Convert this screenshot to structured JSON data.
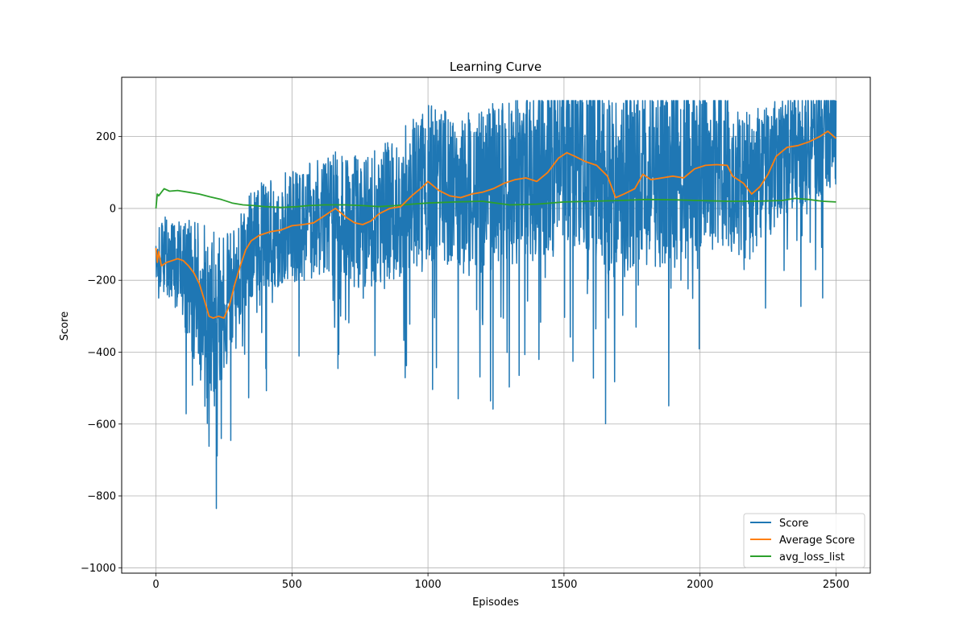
{
  "chart_data": {
    "type": "line",
    "title": "Learning Curve",
    "xlabel": "Episodes",
    "ylabel": "Score",
    "xlim": [
      -126,
      2626
    ],
    "ylim": [
      -1015,
      365
    ],
    "x_ticks": [
      0,
      500,
      1000,
      1500,
      2000,
      2500
    ],
    "y_ticks": [
      -1000,
      -800,
      -600,
      -400,
      -200,
      0,
      200
    ],
    "x_tick_labels": [
      "0",
      "500",
      "1000",
      "1500",
      "2000",
      "2500"
    ],
    "y_tick_labels": [
      "−1000",
      "−800",
      "−600",
      "−400",
      "−200",
      "0",
      "200"
    ],
    "grid": true,
    "legend_position": "lower-right",
    "series": [
      {
        "name": "Score",
        "color": "#1f77b4",
        "episodes": 2500,
        "noise": "high-variance per-episode score",
        "trend": [
          [
            0,
            -150
          ],
          [
            40,
            -130
          ],
          [
            80,
            -160
          ],
          [
            120,
            -200
          ],
          [
            160,
            -260
          ],
          [
            200,
            -310
          ],
          [
            240,
            -300
          ],
          [
            280,
            -230
          ],
          [
            320,
            -150
          ],
          [
            360,
            -90
          ],
          [
            400,
            -70
          ],
          [
            460,
            -55
          ],
          [
            520,
            -45
          ],
          [
            580,
            -35
          ],
          [
            640,
            -10
          ],
          [
            700,
            -30
          ],
          [
            760,
            -40
          ],
          [
            820,
            -20
          ],
          [
            880,
            5
          ],
          [
            940,
            40
          ],
          [
            1000,
            75
          ],
          [
            1060,
            55
          ],
          [
            1120,
            35
          ],
          [
            1180,
            45
          ],
          [
            1240,
            60
          ],
          [
            1300,
            75
          ],
          [
            1360,
            85
          ],
          [
            1420,
            105
          ],
          [
            1480,
            145
          ],
          [
            1520,
            150
          ],
          [
            1580,
            125
          ],
          [
            1640,
            105
          ],
          [
            1680,
            40
          ],
          [
            1720,
            55
          ],
          [
            1780,
            90
          ],
          [
            1820,
            80
          ],
          [
            1880,
            90
          ],
          [
            1940,
            95
          ],
          [
            2000,
            120
          ],
          [
            2060,
            120
          ],
          [
            2120,
            100
          ],
          [
            2180,
            60
          ],
          [
            2240,
            95
          ],
          [
            2300,
            160
          ],
          [
            2360,
            175
          ],
          [
            2420,
            200
          ],
          [
            2460,
            210
          ],
          [
            2500,
            195
          ]
        ],
        "noise_profile": [
          [
            0,
            90
          ],
          [
            100,
            150
          ],
          [
            200,
            260
          ],
          [
            300,
            150
          ],
          [
            500,
            160
          ],
          [
            800,
            190
          ],
          [
            1000,
            220
          ],
          [
            1200,
            230
          ],
          [
            1500,
            250
          ],
          [
            1800,
            260
          ],
          [
            2100,
            230
          ],
          [
            2300,
            180
          ],
          [
            2500,
            170
          ]
        ]
      },
      {
        "name": "Average Score",
        "color": "#ff7f0e",
        "points": [
          [
            0,
            -110
          ],
          [
            5,
            -150
          ],
          [
            10,
            -120
          ],
          [
            20,
            -160
          ],
          [
            40,
            -150
          ],
          [
            60,
            -145
          ],
          [
            80,
            -140
          ],
          [
            100,
            -145
          ],
          [
            120,
            -160
          ],
          [
            140,
            -180
          ],
          [
            160,
            -210
          ],
          [
            180,
            -260
          ],
          [
            195,
            -300
          ],
          [
            210,
            -305
          ],
          [
            230,
            -300
          ],
          [
            250,
            -305
          ],
          [
            270,
            -270
          ],
          [
            290,
            -210
          ],
          [
            310,
            -160
          ],
          [
            330,
            -115
          ],
          [
            350,
            -90
          ],
          [
            380,
            -75
          ],
          [
            420,
            -65
          ],
          [
            460,
            -60
          ],
          [
            500,
            -48
          ],
          [
            540,
            -45
          ],
          [
            580,
            -40
          ],
          [
            620,
            -20
          ],
          [
            660,
            0
          ],
          [
            700,
            -25
          ],
          [
            730,
            -40
          ],
          [
            760,
            -45
          ],
          [
            790,
            -35
          ],
          [
            820,
            -15
          ],
          [
            860,
            0
          ],
          [
            900,
            5
          ],
          [
            940,
            35
          ],
          [
            980,
            60
          ],
          [
            1000,
            75
          ],
          [
            1040,
            50
          ],
          [
            1080,
            35
          ],
          [
            1120,
            30
          ],
          [
            1160,
            40
          ],
          [
            1200,
            45
          ],
          [
            1240,
            55
          ],
          [
            1280,
            70
          ],
          [
            1320,
            80
          ],
          [
            1360,
            85
          ],
          [
            1400,
            75
          ],
          [
            1440,
            100
          ],
          [
            1480,
            140
          ],
          [
            1510,
            155
          ],
          [
            1540,
            145
          ],
          [
            1580,
            130
          ],
          [
            1620,
            120
          ],
          [
            1660,
            90
          ],
          [
            1690,
            30
          ],
          [
            1720,
            40
          ],
          [
            1760,
            55
          ],
          [
            1790,
            95
          ],
          [
            1820,
            80
          ],
          [
            1860,
            85
          ],
          [
            1900,
            90
          ],
          [
            1940,
            85
          ],
          [
            1980,
            110
          ],
          [
            2020,
            120
          ],
          [
            2060,
            122
          ],
          [
            2100,
            120
          ],
          [
            2120,
            90
          ],
          [
            2160,
            70
          ],
          [
            2190,
            40
          ],
          [
            2220,
            60
          ],
          [
            2250,
            95
          ],
          [
            2280,
            145
          ],
          [
            2320,
            170
          ],
          [
            2360,
            175
          ],
          [
            2400,
            185
          ],
          [
            2440,
            200
          ],
          [
            2470,
            215
          ],
          [
            2500,
            195
          ]
        ]
      },
      {
        "name": "avg_loss_list",
        "color": "#2ca02c",
        "points": [
          [
            0,
            0
          ],
          [
            5,
            40
          ],
          [
            10,
            35
          ],
          [
            20,
            45
          ],
          [
            30,
            55
          ],
          [
            50,
            48
          ],
          [
            80,
            50
          ],
          [
            120,
            45
          ],
          [
            160,
            40
          ],
          [
            200,
            32
          ],
          [
            240,
            25
          ],
          [
            280,
            15
          ],
          [
            320,
            10
          ],
          [
            360,
            8
          ],
          [
            400,
            5
          ],
          [
            460,
            3
          ],
          [
            520,
            5
          ],
          [
            560,
            8
          ],
          [
            620,
            10
          ],
          [
            700,
            10
          ],
          [
            760,
            8
          ],
          [
            820,
            5
          ],
          [
            880,
            8
          ],
          [
            940,
            12
          ],
          [
            1000,
            15
          ],
          [
            1100,
            18
          ],
          [
            1200,
            20
          ],
          [
            1300,
            10
          ],
          [
            1400,
            12
          ],
          [
            1500,
            18
          ],
          [
            1600,
            20
          ],
          [
            1700,
            22
          ],
          [
            1800,
            25
          ],
          [
            1900,
            24
          ],
          [
            2000,
            22
          ],
          [
            2100,
            20
          ],
          [
            2200,
            20
          ],
          [
            2300,
            22
          ],
          [
            2350,
            28
          ],
          [
            2400,
            25
          ],
          [
            2450,
            20
          ],
          [
            2500,
            18
          ]
        ]
      }
    ]
  }
}
